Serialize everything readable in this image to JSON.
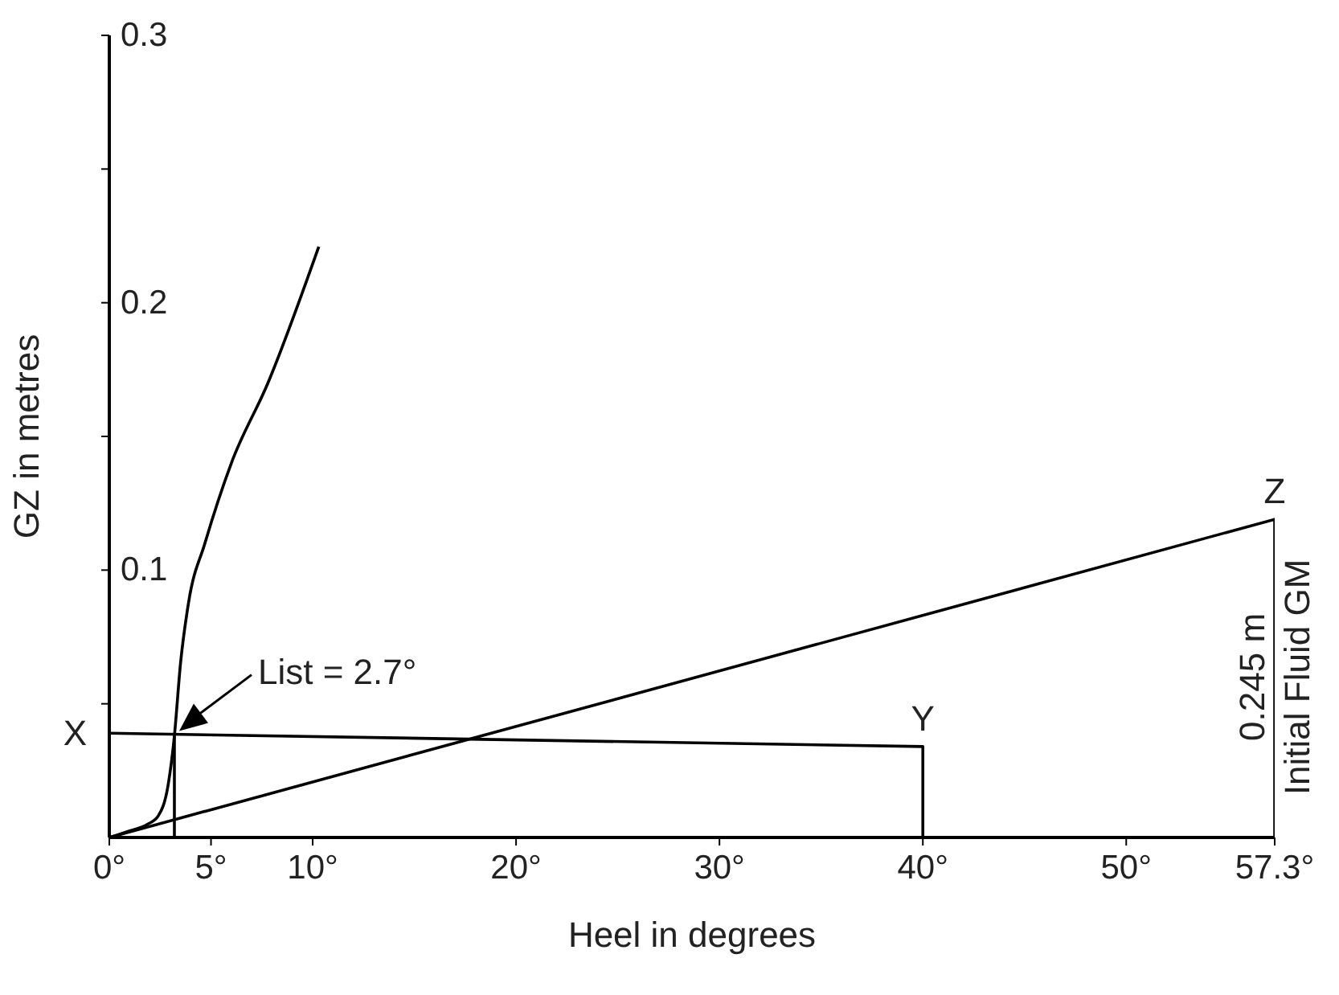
{
  "chart_data": {
    "type": "line",
    "xlabel": "Heel in degrees",
    "ylabel": "GZ in metres",
    "xlim": [
      0,
      57.3
    ],
    "ylim": [
      0,
      0.3
    ],
    "xticks": [
      {
        "value": 0,
        "label": "0°"
      },
      {
        "value": 5,
        "label": "5°"
      },
      {
        "value": 10,
        "label": "10°"
      },
      {
        "value": 20,
        "label": "20°"
      },
      {
        "value": 30,
        "label": "30°"
      },
      {
        "value": 40,
        "label": "40°"
      },
      {
        "value": 50,
        "label": "50°"
      },
      {
        "value": 57.3,
        "label": "57.3°"
      }
    ],
    "yticks": [
      {
        "value": 0.05,
        "label": null
      },
      0.1,
      {
        "value": 0.15,
        "label": null
      },
      0.2,
      {
        "value": 0.25,
        "label": null
      },
      0.3
    ],
    "grid": false,
    "marker": "none",
    "line_style": "solid",
    "series": [
      {
        "color": "#000000",
        "x": [
          0,
          0.8,
          1.9,
          2.4,
          2.9,
          3.2,
          3.5,
          3.9,
          4.7,
          6.0,
          7.8,
          10.3
        ],
        "values": [
          0,
          0.002,
          0.005,
          0.008,
          0.02,
          0.038,
          0.065,
          0.088,
          0.11,
          0.14,
          0.17,
          0.221
        ]
      },
      {
        "color": "#000000",
        "x": [
          0,
          40,
          40
        ],
        "values": [
          0.039,
          0.034,
          0
        ]
      },
      {
        "color": "#000000",
        "x": [
          0,
          57.3,
          57.3
        ],
        "values": [
          0,
          0.119,
          0
        ]
      },
      {
        "color": "#000000",
        "x": [
          3.2,
          3.2
        ],
        "values": [
          0,
          0.038
        ]
      }
    ],
    "annotations": [
      {
        "text": "X",
        "x": 0,
        "y": 0.039
      },
      {
        "text": "Y",
        "x": 40,
        "y": 0.034
      },
      {
        "text": "Z",
        "x": 57.3,
        "y": 0.119
      },
      {
        "text": "List = 2.7°",
        "x": 3.2,
        "y": 0.038
      },
      {
        "text": "0.245 m",
        "x": 57.3,
        "y": 0.06
      },
      {
        "text": "Initial Fluid GM",
        "x": 57.3,
        "y": 0.06
      }
    ]
  }
}
